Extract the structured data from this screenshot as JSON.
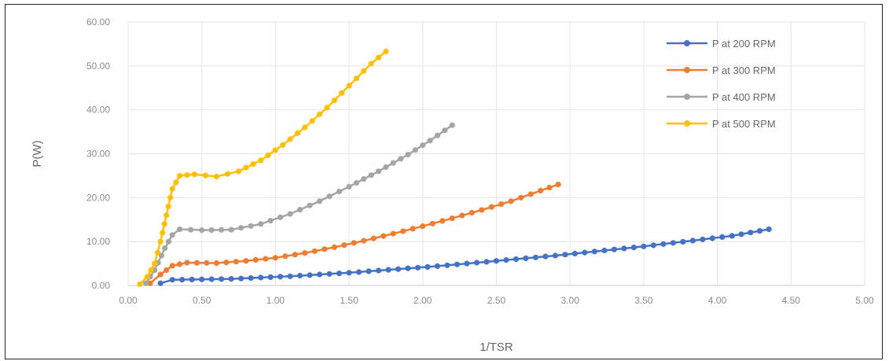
{
  "chart_data": {
    "type": "line",
    "xlabel": "1/TSR",
    "ylabel": "P(W)",
    "xlim": [
      0,
      5
    ],
    "ylim": [
      0,
      60
    ],
    "x_ticks": [
      "0.00",
      "0.50",
      "1.00",
      "1.50",
      "2.00",
      "2.50",
      "3.00",
      "3.50",
      "4.00",
      "4.50",
      "5.00"
    ],
    "y_ticks": [
      "0.00",
      "10.00",
      "20.00",
      "30.00",
      "40.00",
      "50.00",
      "60.00"
    ],
    "grid": "on",
    "legend": "top-right",
    "series": [
      {
        "name": "P at 200 RPM",
        "color": "#4472C4",
        "points": [
          [
            0.22,
            0.5
          ],
          [
            0.3,
            1.3
          ],
          [
            0.5,
            1.4
          ],
          [
            0.7,
            1.5
          ],
          [
            0.9,
            1.8
          ],
          [
            1.1,
            2.1
          ],
          [
            1.3,
            2.5
          ],
          [
            1.5,
            2.9
          ],
          [
            1.7,
            3.4
          ],
          [
            1.9,
            3.9
          ],
          [
            2.1,
            4.4
          ],
          [
            2.3,
            5.0
          ],
          [
            2.5,
            5.6
          ],
          [
            2.7,
            6.2
          ],
          [
            2.9,
            6.8
          ],
          [
            3.1,
            7.5
          ],
          [
            3.3,
            8.2
          ],
          [
            3.5,
            8.9
          ],
          [
            3.7,
            9.7
          ],
          [
            3.9,
            10.5
          ],
          [
            4.1,
            11.3
          ],
          [
            4.35,
            12.8
          ]
        ]
      },
      {
        "name": "P at 300 RPM",
        "color": "#ED7D31",
        "points": [
          [
            0.15,
            0.5
          ],
          [
            0.22,
            2.5
          ],
          [
            0.3,
            4.5
          ],
          [
            0.4,
            5.2
          ],
          [
            0.6,
            5.1
          ],
          [
            0.8,
            5.6
          ],
          [
            1.0,
            6.3
          ],
          [
            1.2,
            7.4
          ],
          [
            1.4,
            8.7
          ],
          [
            1.6,
            10.2
          ],
          [
            1.8,
            11.8
          ],
          [
            2.0,
            13.5
          ],
          [
            2.2,
            15.3
          ],
          [
            2.4,
            17.2
          ],
          [
            2.6,
            19.2
          ],
          [
            2.8,
            21.6
          ],
          [
            2.92,
            23.0
          ]
        ]
      },
      {
        "name": "P at 400 RPM",
        "color": "#A5A5A5",
        "points": [
          [
            0.12,
            0.5
          ],
          [
            0.18,
            3.5
          ],
          [
            0.25,
            8.5
          ],
          [
            0.3,
            11.5
          ],
          [
            0.35,
            12.8
          ],
          [
            0.5,
            12.6
          ],
          [
            0.7,
            12.7
          ],
          [
            0.9,
            14.0
          ],
          [
            1.1,
            16.3
          ],
          [
            1.3,
            19.2
          ],
          [
            1.5,
            22.5
          ],
          [
            1.7,
            26.0
          ],
          [
            1.9,
            29.8
          ],
          [
            2.05,
            33.0
          ],
          [
            2.2,
            36.5
          ]
        ]
      },
      {
        "name": "P at 500 RPM",
        "color": "#FFC000",
        "points": [
          [
            0.08,
            0.3
          ],
          [
            0.13,
            2.0
          ],
          [
            0.18,
            5.0
          ],
          [
            0.22,
            10.0
          ],
          [
            0.26,
            16.0
          ],
          [
            0.3,
            22.0
          ],
          [
            0.35,
            25.0
          ],
          [
            0.45,
            25.3
          ],
          [
            0.6,
            24.8
          ],
          [
            0.75,
            26.0
          ],
          [
            0.9,
            28.5
          ],
          [
            1.05,
            32.0
          ],
          [
            1.2,
            36.0
          ],
          [
            1.35,
            40.5
          ],
          [
            1.5,
            45.5
          ],
          [
            1.65,
            50.5
          ],
          [
            1.75,
            53.3
          ]
        ]
      }
    ]
  }
}
